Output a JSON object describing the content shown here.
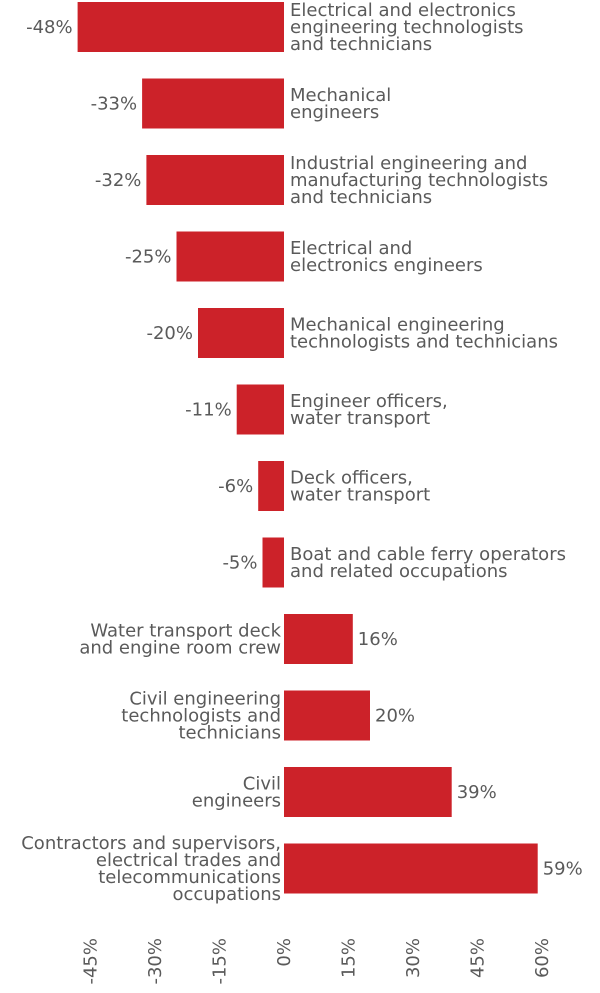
{
  "chart_data": {
    "type": "bar",
    "orientation": "horizontal",
    "categories": [
      [
        "Electrical and electronics",
        "engineering technologists",
        "and technicians"
      ],
      [
        "Mechanical",
        "engineers"
      ],
      [
        "Industrial engineering and",
        "manufacturing technologists",
        "and technicians"
      ],
      [
        "Electrical and",
        "electronics engineers"
      ],
      [
        "Mechanical engineering",
        "technologists and technicians"
      ],
      [
        "Engineer officers,",
        "water transport"
      ],
      [
        "Deck officers,",
        "water transport"
      ],
      [
        "Boat and cable ferry operators",
        "and related occupations"
      ],
      [
        "Water transport deck",
        "and engine room crew"
      ],
      [
        "Civil engineering",
        "technologists and",
        "technicians"
      ],
      [
        "Civil",
        "engineers"
      ],
      [
        "Contractors and supervisors,",
        "electrical trades and",
        "telecommunications",
        "occupations"
      ]
    ],
    "values": [
      -48,
      -33,
      -32,
      -25,
      -20,
      -11,
      -6,
      -5,
      16,
      20,
      39,
      59
    ],
    "value_labels": [
      "-48%",
      "-33%",
      "-32%",
      "-25%",
      "-20%",
      "-11%",
      "-6%",
      "-5%",
      "16%",
      "20%",
      "39%",
      "59%"
    ],
    "xlim": [
      -48,
      62
    ],
    "xticks": [
      -45,
      -30,
      -15,
      0,
      15,
      30,
      45,
      60
    ],
    "xtick_labels": [
      "-45%",
      "-30%",
      "-15%",
      "0%",
      "15%",
      "30%",
      "45%",
      "60%"
    ],
    "grid": false,
    "legend": "none",
    "bar_color": "#cc2229",
    "text_color": "#5a5a5a"
  }
}
